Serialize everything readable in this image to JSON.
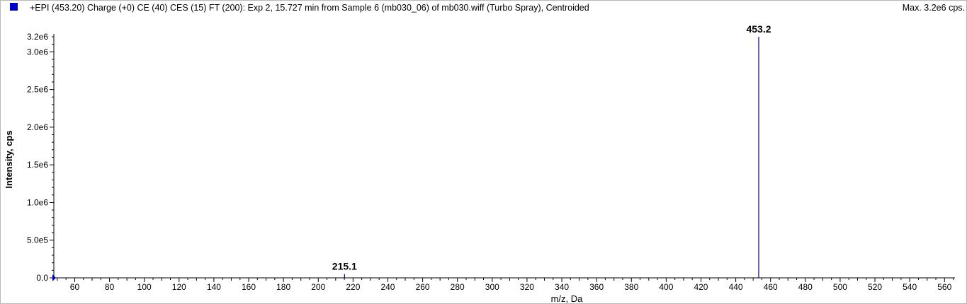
{
  "header": {
    "title": "+EPI (453.20) Charge (+0) CE (40) CES (15) FT (200): Exp 2, 15.727 min from Sample 6 (mb030_06) of mb030.wiff (Turbo Spray), Centroided",
    "max_label": "Max. 3.2e6 cps.",
    "legend_color": "#0000cc"
  },
  "chart_data": {
    "type": "bar",
    "xlabel": "m/z, Da",
    "ylabel": "Intensity, cps",
    "xlim": [
      48,
      566
    ],
    "ylim": [
      0,
      3200000
    ],
    "xticks": [
      60,
      80,
      100,
      120,
      140,
      160,
      180,
      200,
      220,
      240,
      260,
      280,
      300,
      320,
      340,
      360,
      380,
      400,
      420,
      440,
      460,
      480,
      500,
      520,
      540,
      560
    ],
    "yticks": [
      {
        "value": 0,
        "label": "0.0"
      },
      {
        "value": 500000,
        "label": "5.0e5"
      },
      {
        "value": 1000000,
        "label": "1.0e6"
      },
      {
        "value": 1500000,
        "label": "1.5e6"
      },
      {
        "value": 2000000,
        "label": "2.0e6"
      },
      {
        "value": 2500000,
        "label": "2.5e6"
      },
      {
        "value": 3000000,
        "label": "3.0e6"
      },
      {
        "value": 3200000,
        "label": "3.2e6"
      }
    ],
    "peaks": [
      {
        "mz": 215.1,
        "intensity": 50000,
        "label": "215.1"
      },
      {
        "mz": 453.2,
        "intensity": 3200000,
        "label": "453.2"
      }
    ],
    "series_color": "#000080"
  }
}
